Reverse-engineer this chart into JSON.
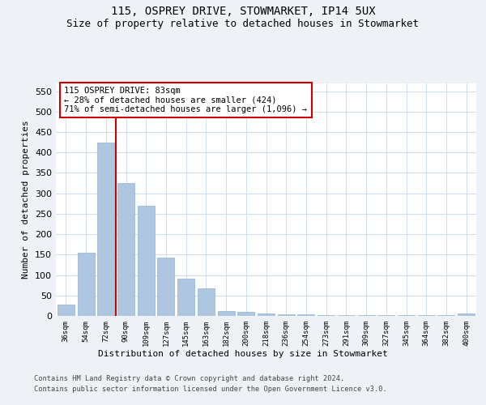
{
  "title1": "115, OSPREY DRIVE, STOWMARKET, IP14 5UX",
  "title2": "Size of property relative to detached houses in Stowmarket",
  "xlabel": "Distribution of detached houses by size in Stowmarket",
  "ylabel": "Number of detached properties",
  "categories": [
    "36sqm",
    "54sqm",
    "72sqm",
    "90sqm",
    "109sqm",
    "127sqm",
    "145sqm",
    "163sqm",
    "182sqm",
    "200sqm",
    "218sqm",
    "236sqm",
    "254sqm",
    "273sqm",
    "291sqm",
    "309sqm",
    "327sqm",
    "345sqm",
    "364sqm",
    "382sqm",
    "400sqm"
  ],
  "values": [
    28,
    155,
    424,
    326,
    270,
    143,
    92,
    67,
    12,
    9,
    6,
    4,
    3,
    2,
    1,
    1,
    1,
    1,
    1,
    1,
    5
  ],
  "bar_color": "#aec6df",
  "bar_edge_color": "#8fb4d4",
  "red_line_color": "#cc0000",
  "annotation_text": "115 OSPREY DRIVE: 83sqm\n← 28% of detached houses are smaller (424)\n71% of semi-detached houses are larger (1,096) →",
  "annotation_box_color": "#ffffff",
  "annotation_box_edge": "#cc0000",
  "ylim": [
    0,
    570
  ],
  "yticks": [
    0,
    50,
    100,
    150,
    200,
    250,
    300,
    350,
    400,
    450,
    500,
    550
  ],
  "footer1": "Contains HM Land Registry data © Crown copyright and database right 2024.",
  "footer2": "Contains public sector information licensed under the Open Government Licence v3.0.",
  "bg_color": "#eef2f7",
  "plot_bg": "#ffffff"
}
